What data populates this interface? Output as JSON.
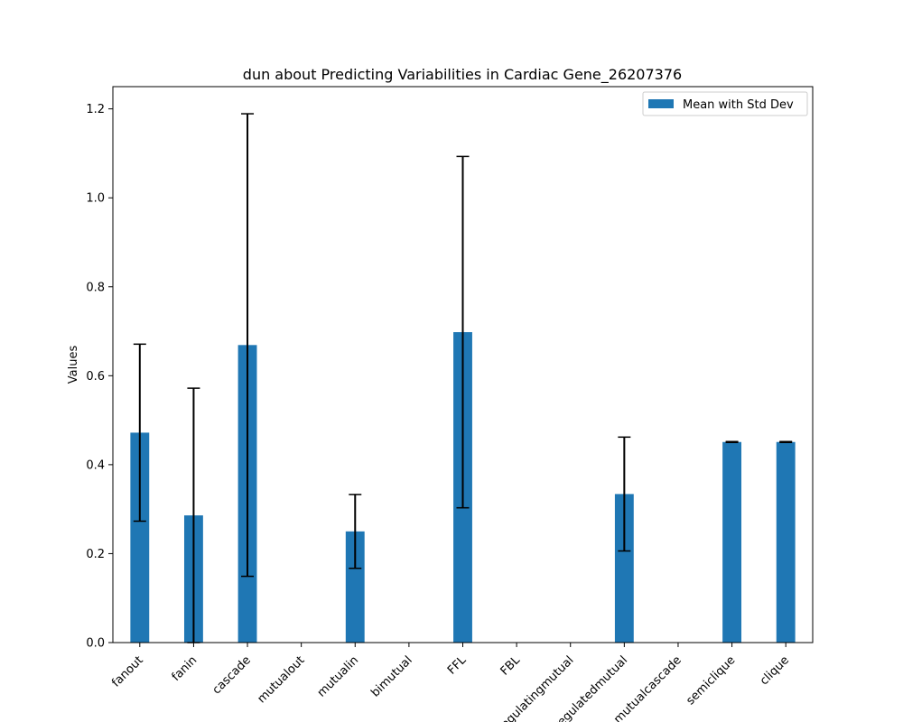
{
  "chart_data": {
    "type": "bar",
    "title": "dun about Predicting Variabilities in Cardiac Gene_26207376",
    "xlabel": "",
    "ylabel": "Values",
    "categories": [
      "fanout",
      "fanin",
      "cascade",
      "mutualout",
      "mutualin",
      "bimutual",
      "FFL",
      "FBL",
      "regulatingmutual",
      "regulatedmutual",
      "mutualcascade",
      "semiclique",
      "clique"
    ],
    "series": [
      {
        "name": "Mean with Std Dev",
        "values": [
          0.472,
          0.286,
          0.669,
          0,
          0.25,
          0,
          0.698,
          0,
          0,
          0.334,
          0,
          0.451,
          0.451
        ],
        "std": [
          0.199,
          0.286,
          0.52,
          0,
          0.083,
          0,
          0.395,
          0,
          0,
          0.128,
          0,
          0.001,
          0.001
        ],
        "color": "#1f77b4"
      }
    ],
    "yticks": [
      "0.0",
      "0.2",
      "0.4",
      "0.6",
      "0.8",
      "1.0",
      "1.2"
    ],
    "ylim": [
      0,
      1.25
    ],
    "grid": false,
    "legend_position": "top-right"
  }
}
